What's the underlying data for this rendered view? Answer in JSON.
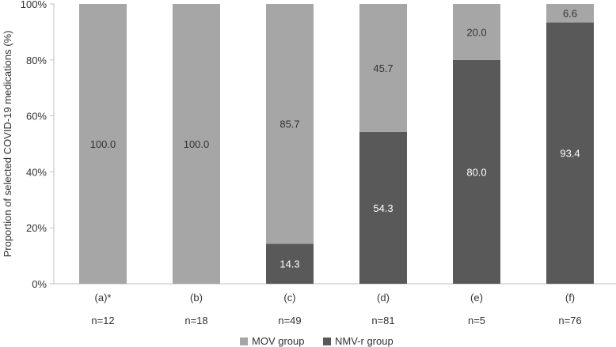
{
  "chart_data": {
    "type": "bar",
    "stacked": true,
    "percent": true,
    "ylabel": "Proportion of selected COVID-19 medications (%)",
    "xlabel": "",
    "ylim": [
      0,
      100
    ],
    "yticks": [
      0,
      20,
      40,
      60,
      80,
      100
    ],
    "ytick_labels": [
      "0%",
      "20%",
      "40%",
      "60%",
      "80%",
      "100%"
    ],
    "categories": [
      "(a)*",
      "(b)",
      "(c)",
      "(d)",
      "(e)",
      "(f)"
    ],
    "sample_sizes": [
      "n=12",
      "n=18",
      "n=49",
      "n=81",
      "n=5",
      "n=76"
    ],
    "series": [
      {
        "name": "NMV-r group",
        "color": "#595959",
        "label_color": "#ffffff",
        "values": [
          0,
          0,
          14.3,
          54.3,
          80.0,
          93.4
        ],
        "labels": [
          "",
          "",
          "14.3",
          "54.3",
          "80.0",
          "93.4"
        ]
      },
      {
        "name": "MOV group",
        "color": "#a6a6a6",
        "label_color": "#333333",
        "values": [
          100.0,
          100.0,
          85.7,
          45.7,
          20.0,
          6.6
        ],
        "labels": [
          "100.0",
          "100.0",
          "85.7",
          "45.7",
          "20.0",
          "6.6"
        ]
      }
    ],
    "legend": {
      "position": "bottom-center",
      "entries": [
        "MOV group",
        "NMV-r group"
      ]
    },
    "grid": false
  }
}
